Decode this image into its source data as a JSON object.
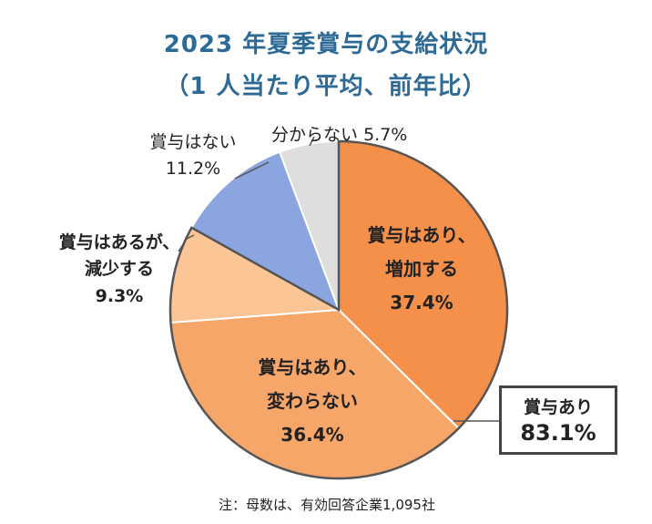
{
  "title_line1": "2023 年夏季賞与の支給状況",
  "title_line2": "（1 人当たり平均、前年比）",
  "note": "注：母数は、有効回答企業1,095社",
  "callout": {
    "label": "賞与あり",
    "value": "83.1%"
  },
  "colors": {
    "increase": "#f5904a",
    "unchanged": "#f7a669",
    "decrease": "#fbc596",
    "none": "#8aa5df",
    "unknown": "#dedede"
  },
  "chart_data": {
    "type": "pie",
    "title": "2023 年夏季賞与の支給状況",
    "subtitle": "（1 人当たり平均、前年比）",
    "slices": [
      {
        "label_line1": "賞与はあり、",
        "label_line2": "増加する",
        "value": 37.4,
        "pct": "37.4%"
      },
      {
        "label_line1": "賞与はあり、",
        "label_line2": "変わらない",
        "value": 36.4,
        "pct": "36.4%"
      },
      {
        "label_line1": "賞与はあるが、",
        "label_line2": "減少する",
        "value": 9.3,
        "pct": "9.3%"
      },
      {
        "label_line1": "賞与はない",
        "label_line2": "",
        "value": 11.2,
        "pct": "11.2%"
      },
      {
        "label_line1": "分からない",
        "label_line2": "",
        "value": 5.7,
        "pct": "5.7%"
      }
    ]
  }
}
